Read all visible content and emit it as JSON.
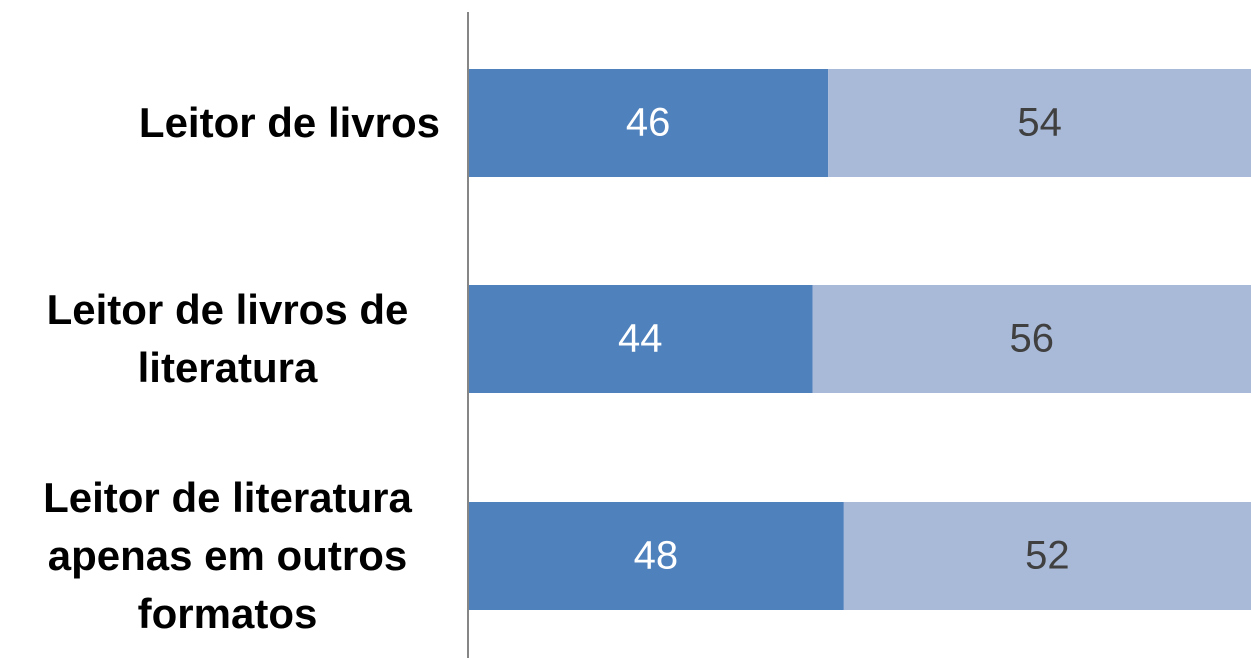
{
  "chart_data": {
    "type": "stacked-bar-horizontal",
    "categories": [
      "Leitor de livros",
      "Leitor de livros de literatura",
      "Leitor de literatura apenas em outros formatos"
    ],
    "series": [
      {
        "color": "#4f81bd",
        "label_color": "#ffffff",
        "values": [
          46,
          44,
          48
        ]
      },
      {
        "color": "#a9b9d8",
        "label_color": "#404040",
        "values": [
          54,
          56,
          52
        ]
      }
    ],
    "xlim": [
      0,
      100
    ]
  }
}
